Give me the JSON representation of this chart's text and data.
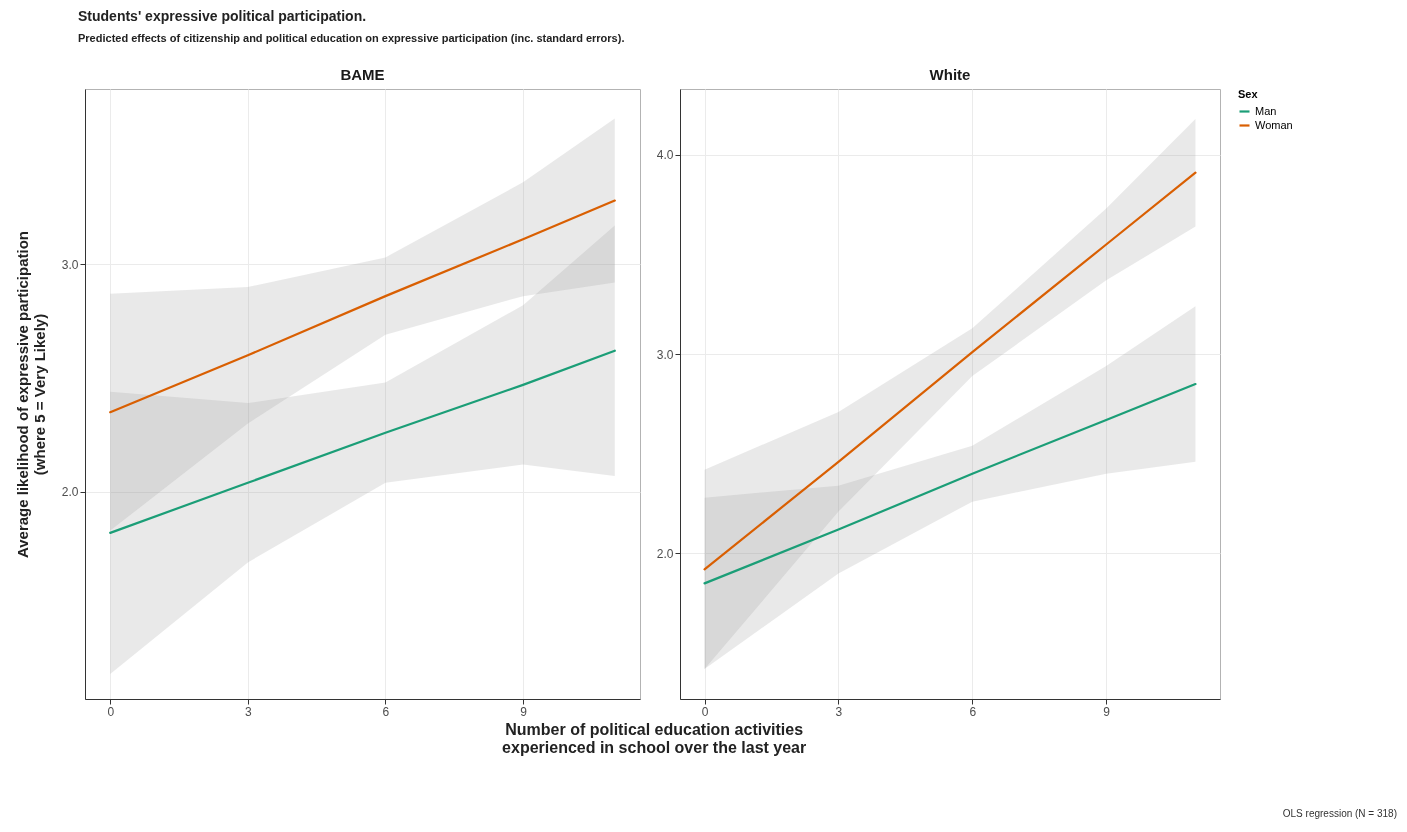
{
  "chart_data": [
    {
      "type": "line",
      "title": "BAME",
      "annotations": [
        "Students' expressive political participation.",
        "Predicted effects of citizenship and political education on expressive participation (inc. standard errors)."
      ],
      "xlabel": "Number of political education activities\nexperienced in school over the last year",
      "ylabel": "Average likelihood of expressive participation\n(where 5 = Very Likely)",
      "x": [
        0,
        3,
        6,
        9,
        11
      ],
      "xlim": [
        -0.55,
        11.55
      ],
      "xticks": [
        0,
        3,
        6,
        9
      ],
      "ylim": [
        1.09,
        3.77
      ],
      "yticks": [
        {
          "value": 2,
          "label": "2.0"
        },
        {
          "value": 3,
          "label": "3.0"
        }
      ],
      "grid": true,
      "legend": false,
      "series": [
        {
          "color": "#1b9e77",
          "values": [
            1.82,
            2.04,
            2.26,
            2.47,
            2.62
          ],
          "lower": [
            1.2,
            1.69,
            2.04,
            2.12,
            2.07
          ],
          "upper": [
            2.44,
            2.39,
            2.48,
            2.82,
            3.17
          ]
        },
        {
          "color": "#d95f02",
          "values": [
            2.35,
            2.6,
            2.86,
            3.11,
            3.28
          ],
          "lower": [
            1.83,
            2.3,
            2.69,
            2.86,
            2.92
          ],
          "upper": [
            2.87,
            2.9,
            3.03,
            3.36,
            3.64
          ]
        }
      ]
    },
    {
      "type": "line",
      "title": "White",
      "annotations": [
        "OLS regression (N = 318)"
      ],
      "legend_title": "Sex",
      "legend": "right",
      "x": [
        0,
        3,
        6,
        9,
        11
      ],
      "xlim": [
        -0.55,
        11.55
      ],
      "xticks": [
        0,
        3,
        6,
        9
      ],
      "ylim": [
        1.27,
        4.33
      ],
      "yticks": [
        {
          "value": 2,
          "label": "2.0"
        },
        {
          "value": 3,
          "label": "3.0"
        },
        {
          "value": 4,
          "label": "4.0"
        }
      ],
      "grid": true,
      "series": [
        {
          "name": "Man",
          "color": "#1b9e77",
          "values": [
            1.85,
            2.12,
            2.4,
            2.67,
            2.85
          ],
          "lower": [
            1.42,
            1.9,
            2.26,
            2.4,
            2.46
          ],
          "upper": [
            2.28,
            2.34,
            2.54,
            2.94,
            3.24
          ]
        },
        {
          "name": "Woman",
          "color": "#d95f02",
          "values": [
            1.92,
            2.46,
            3.01,
            3.55,
            3.91
          ],
          "lower": [
            1.42,
            2.21,
            2.89,
            3.37,
            3.64
          ],
          "upper": [
            2.42,
            2.71,
            3.13,
            3.73,
            4.18
          ]
        }
      ]
    }
  ]
}
